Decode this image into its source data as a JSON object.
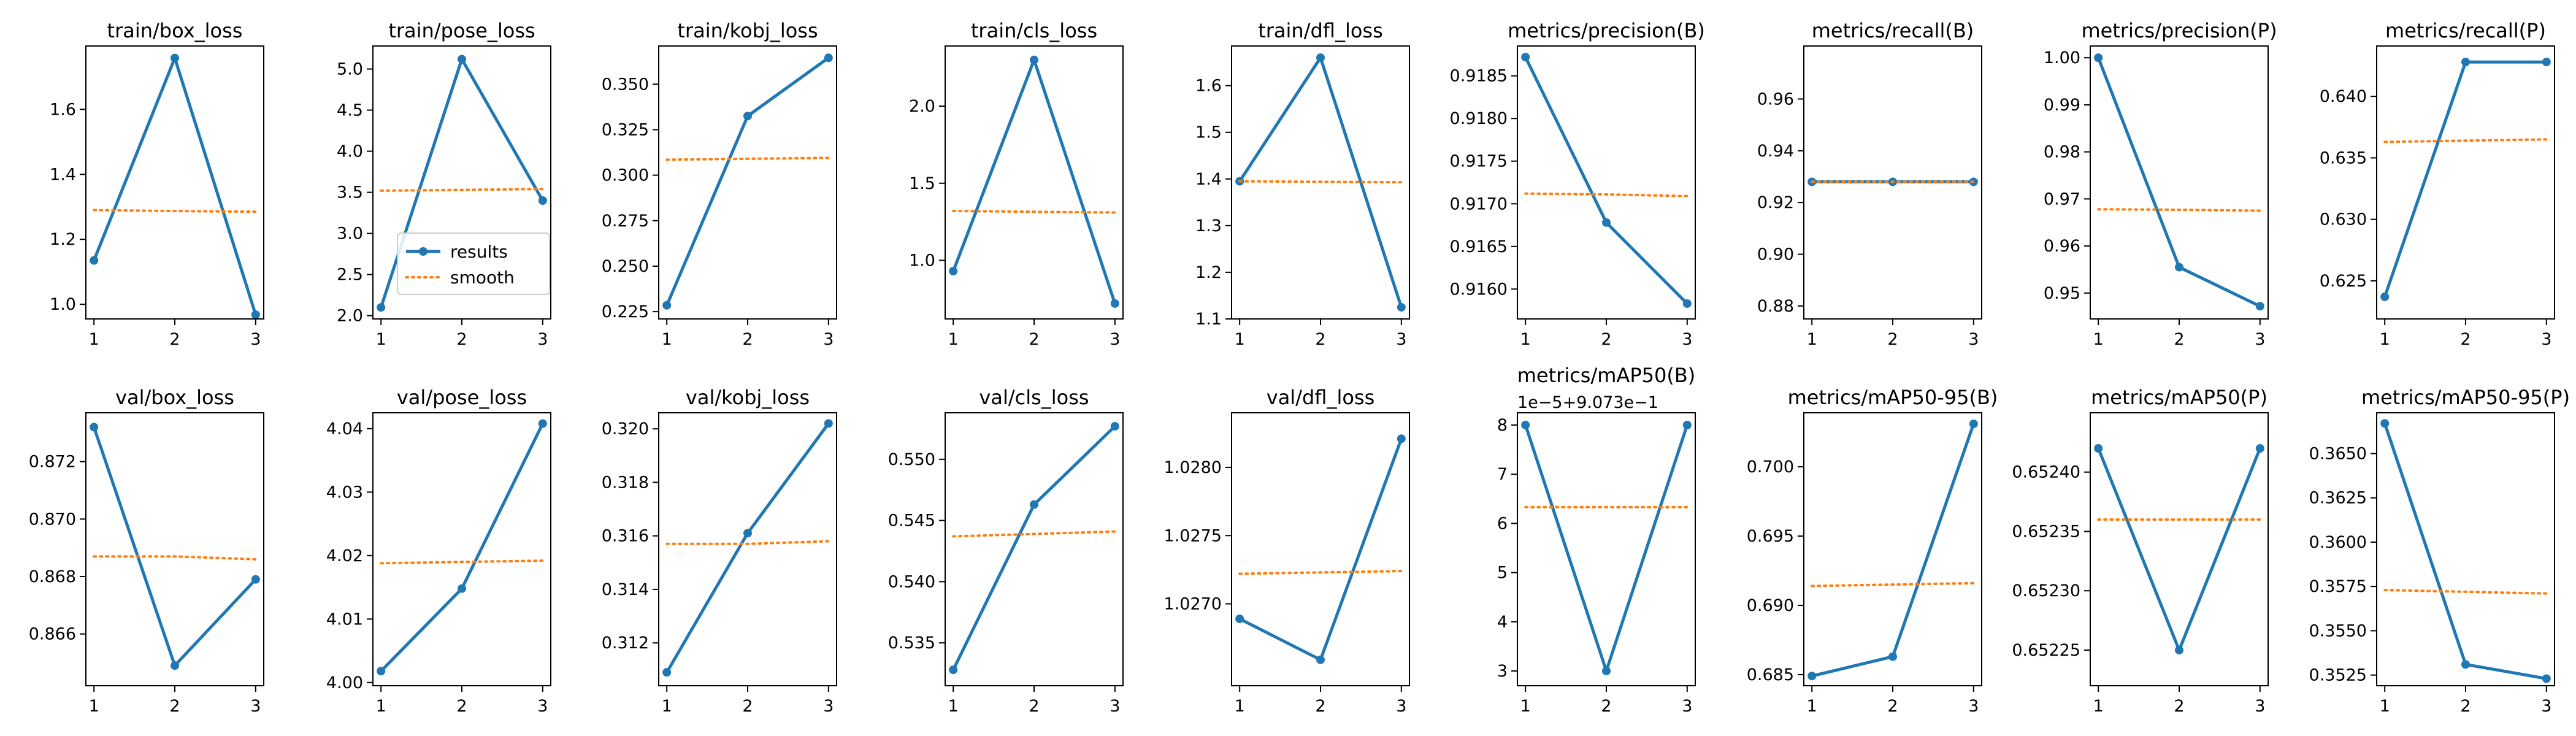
{
  "colors": {
    "results": "#1f77b4",
    "smooth": "#ff7f0e",
    "axis": "#000000"
  },
  "legend": {
    "items": [
      "results",
      "smooth"
    ],
    "panel": 1,
    "placement": "lower-left"
  },
  "chart_data": [
    {
      "type": "line",
      "title": "train/box_loss",
      "x": [
        1,
        2,
        3
      ],
      "ylim": [
        0.955,
        1.795
      ],
      "yticks": [
        1.0,
        1.2,
        1.4,
        1.6
      ],
      "yticklabels": [
        "1.0",
        "1.2",
        "1.4",
        "1.6"
      ],
      "series": [
        {
          "name": "results",
          "values": [
            1.135,
            1.758,
            0.968
          ]
        },
        {
          "name": "smooth",
          "values": [
            1.29,
            1.287,
            1.285
          ]
        }
      ]
    },
    {
      "type": "line",
      "title": "train/pose_loss",
      "x": [
        1,
        2,
        3
      ],
      "ylim": [
        1.96,
        5.28
      ],
      "yticks": [
        2.0,
        2.5,
        3.0,
        3.5,
        4.0,
        4.5,
        5.0
      ],
      "yticklabels": [
        "2.0",
        "2.5",
        "3.0",
        "3.5",
        "4.0",
        "4.5",
        "5.0"
      ],
      "series": [
        {
          "name": "results",
          "values": [
            2.1,
            5.12,
            3.4
          ]
        },
        {
          "name": "smooth",
          "values": [
            3.52,
            3.53,
            3.54
          ]
        }
      ]
    },
    {
      "type": "line",
      "title": "train/kobj_loss",
      "x": [
        1,
        2,
        3
      ],
      "ylim": [
        0.221,
        0.371
      ],
      "yticks": [
        0.225,
        0.25,
        0.275,
        0.3,
        0.325,
        0.35
      ],
      "yticklabels": [
        "0.225",
        "0.250",
        "0.275",
        "0.300",
        "0.325",
        "0.350"
      ],
      "series": [
        {
          "name": "results",
          "values": [
            0.2285,
            0.3325,
            0.3645
          ]
        },
        {
          "name": "smooth",
          "values": [
            0.3085,
            0.309,
            0.3095
          ]
        }
      ]
    },
    {
      "type": "line",
      "title": "train/cls_loss",
      "x": [
        1,
        2,
        3
      ],
      "ylim": [
        0.62,
        2.39
      ],
      "yticks": [
        1.0,
        1.5,
        2.0
      ],
      "yticklabels": [
        "1.0",
        "1.5",
        "2.0"
      ],
      "series": [
        {
          "name": "results",
          "values": [
            0.93,
            2.3,
            0.72
          ]
        },
        {
          "name": "smooth",
          "values": [
            1.32,
            1.315,
            1.31
          ]
        }
      ]
    },
    {
      "type": "line",
      "title": "train/dfl_loss",
      "x": [
        1,
        2,
        3
      ],
      "ylim": [
        1.1,
        1.685
      ],
      "yticks": [
        1.1,
        1.2,
        1.3,
        1.4,
        1.5,
        1.6
      ],
      "yticklabels": [
        "1.1",
        "1.2",
        "1.3",
        "1.4",
        "1.5",
        "1.6"
      ],
      "series": [
        {
          "name": "results",
          "values": [
            1.395,
            1.66,
            1.125
          ]
        },
        {
          "name": "smooth",
          "values": [
            1.395,
            1.394,
            1.393
          ]
        }
      ]
    },
    {
      "type": "line",
      "title": "metrics/precision(B)",
      "x": [
        1,
        2,
        3
      ],
      "ylim": [
        0.91565,
        0.91885
      ],
      "yticks": [
        0.916,
        0.9165,
        0.917,
        0.9175,
        0.918,
        0.9185
      ],
      "yticklabels": [
        "0.9160",
        "0.9165",
        "0.9170",
        "0.9175",
        "0.9180",
        "0.9185"
      ],
      "series": [
        {
          "name": "results",
          "values": [
            0.91872,
            0.91678,
            0.91583
          ]
        },
        {
          "name": "smooth",
          "values": [
            0.91712,
            0.91711,
            0.91709
          ]
        }
      ]
    },
    {
      "type": "line",
      "title": "metrics/recall(B)",
      "x": [
        1,
        2,
        3
      ],
      "ylim": [
        0.875,
        0.9805
      ],
      "yticks": [
        0.88,
        0.9,
        0.92,
        0.94,
        0.96
      ],
      "yticklabels": [
        "0.88",
        "0.90",
        "0.92",
        "0.94",
        "0.96"
      ],
      "series": [
        {
          "name": "results",
          "values": [
            0.928,
            0.928,
            0.928
          ]
        },
        {
          "name": "smooth",
          "values": [
            0.928,
            0.928,
            0.928
          ]
        }
      ]
    },
    {
      "type": "line",
      "title": "metrics/precision(P)",
      "x": [
        1,
        2,
        3
      ],
      "ylim": [
        0.9445,
        1.0025
      ],
      "yticks": [
        0.95,
        0.96,
        0.97,
        0.98,
        0.99,
        1.0
      ],
      "yticklabels": [
        "0.95",
        "0.96",
        "0.97",
        "0.98",
        "0.99",
        "1.00"
      ],
      "series": [
        {
          "name": "results",
          "values": [
            1.0,
            0.9555,
            0.9472
          ]
        },
        {
          "name": "smooth",
          "values": [
            0.9678,
            0.9677,
            0.9675
          ]
        }
      ]
    },
    {
      "type": "line",
      "title": "metrics/recall(P)",
      "x": [
        1,
        2,
        3
      ],
      "ylim": [
        0.6219,
        0.6441
      ],
      "yticks": [
        0.625,
        0.63,
        0.635,
        0.64
      ],
      "yticklabels": [
        "0.625",
        "0.630",
        "0.635",
        "0.640"
      ],
      "series": [
        {
          "name": "results",
          "values": [
            0.6237,
            0.6428,
            0.6428
          ]
        },
        {
          "name": "smooth",
          "values": [
            0.6363,
            0.6364,
            0.6365
          ]
        }
      ]
    },
    {
      "type": "line",
      "title": "val/box_loss",
      "x": [
        1,
        2,
        3
      ],
      "ylim": [
        0.8642,
        0.8737
      ],
      "yticks": [
        0.866,
        0.868,
        0.87,
        0.872
      ],
      "yticklabels": [
        "0.866",
        "0.868",
        "0.870",
        "0.872"
      ],
      "series": [
        {
          "name": "results",
          "values": [
            0.8732,
            0.8649,
            0.8679
          ]
        },
        {
          "name": "smooth",
          "values": [
            0.8687,
            0.8687,
            0.8686
          ]
        }
      ]
    },
    {
      "type": "line",
      "title": "val/pose_loss",
      "x": [
        1,
        2,
        3
      ],
      "ylim": [
        3.9995,
        4.0425
      ],
      "yticks": [
        4.0,
        4.01,
        4.02,
        4.03,
        4.04
      ],
      "yticklabels": [
        "4.00",
        "4.01",
        "4.02",
        "4.03",
        "4.04"
      ],
      "series": [
        {
          "name": "results",
          "values": [
            4.0018,
            4.0148,
            4.0408
          ]
        },
        {
          "name": "smooth",
          "values": [
            4.0188,
            4.019,
            4.0192
          ]
        }
      ]
    },
    {
      "type": "line",
      "title": "val/kobj_loss",
      "x": [
        1,
        2,
        3
      ],
      "ylim": [
        0.3104,
        0.3206
      ],
      "yticks": [
        0.312,
        0.314,
        0.316,
        0.318,
        0.32
      ],
      "yticklabels": [
        "0.312",
        "0.314",
        "0.316",
        "0.318",
        "0.320"
      ],
      "series": [
        {
          "name": "results",
          "values": [
            0.3109,
            0.3161,
            0.3202
          ]
        },
        {
          "name": "smooth",
          "values": [
            0.3157,
            0.3157,
            0.3158
          ]
        }
      ]
    },
    {
      "type": "line",
      "title": "val/cls_loss",
      "x": [
        1,
        2,
        3
      ],
      "ylim": [
        0.5315,
        0.5538
      ],
      "yticks": [
        0.535,
        0.54,
        0.545,
        0.55
      ],
      "yticklabels": [
        "0.535",
        "0.540",
        "0.545",
        "0.550"
      ],
      "series": [
        {
          "name": "results",
          "values": [
            0.5328,
            0.5463,
            0.5527
          ]
        },
        {
          "name": "smooth",
          "values": [
            0.5437,
            0.5439,
            0.5441
          ]
        }
      ]
    },
    {
      "type": "line",
      "title": "val/dfl_loss",
      "x": [
        1,
        2,
        3
      ],
      "ylim": [
        1.0264,
        1.0284
      ],
      "yticks": [
        1.027,
        1.0275,
        1.028
      ],
      "yticklabels": [
        "1.0270",
        "1.0275",
        "1.0280"
      ],
      "series": [
        {
          "name": "results",
          "values": [
            1.02689,
            1.02659,
            1.02821
          ]
        },
        {
          "name": "smooth",
          "values": [
            1.02722,
            1.02723,
            1.02724
          ]
        }
      ]
    },
    {
      "type": "line",
      "title": "metrics/mAP50(B)",
      "offset_label": "1e−5+9.073e−1",
      "x": [
        1,
        2,
        3
      ],
      "ylim": [
        2.7,
        8.25
      ],
      "yticks": [
        3,
        4,
        5,
        6,
        7,
        8
      ],
      "yticklabels": [
        "3",
        "4",
        "5",
        "6",
        "7",
        "8"
      ],
      "series": [
        {
          "name": "results",
          "values": [
            8,
            3,
            8
          ]
        },
        {
          "name": "smooth",
          "values": [
            6.33,
            6.33,
            6.33
          ]
        }
      ]
    },
    {
      "type": "line",
      "title": "metrics/mAP50-95(B)",
      "x": [
        1,
        2,
        3
      ],
      "ylim": [
        0.6842,
        0.7039
      ],
      "yticks": [
        0.685,
        0.69,
        0.695,
        0.7
      ],
      "yticklabels": [
        "0.685",
        "0.690",
        "0.695",
        "0.700"
      ],
      "series": [
        {
          "name": "results",
          "values": [
            0.6849,
            0.6863,
            0.7031
          ]
        },
        {
          "name": "smooth",
          "values": [
            0.6914,
            0.6915,
            0.6916
          ]
        }
      ]
    },
    {
      "type": "line",
      "title": "metrics/mAP50(P)",
      "x": [
        1,
        2,
        3
      ],
      "ylim": [
        0.65222,
        0.65245
      ],
      "yticks": [
        0.65225,
        0.6523,
        0.65235,
        0.6524
      ],
      "yticklabels": [
        "0.65225",
        "0.65230",
        "0.65235",
        "0.65240"
      ],
      "series": [
        {
          "name": "results",
          "values": [
            0.65242,
            0.65225,
            0.65242
          ]
        },
        {
          "name": "smooth",
          "values": [
            0.65236,
            0.65236,
            0.65236
          ]
        }
      ]
    },
    {
      "type": "line",
      "title": "metrics/mAP50-95(P)",
      "x": [
        1,
        2,
        3
      ],
      "ylim": [
        0.3519,
        0.3673
      ],
      "yticks": [
        0.3525,
        0.355,
        0.3575,
        0.36,
        0.3625,
        0.365
      ],
      "yticklabels": [
        "0.3525",
        "0.3550",
        "0.3575",
        "0.3600",
        "0.3625",
        "0.3650"
      ],
      "series": [
        {
          "name": "results",
          "values": [
            0.3667,
            0.3531,
            0.3523
          ]
        },
        {
          "name": "smooth",
          "values": [
            0.3573,
            0.3572,
            0.3571
          ]
        }
      ]
    }
  ]
}
